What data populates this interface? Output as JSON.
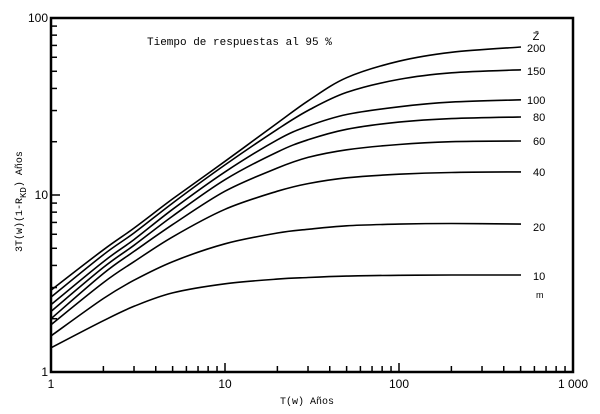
{
  "chart_data": {
    "type": "line",
    "title": "Tiempo de respuestas al 95 %",
    "xlabel": "T(w) Años",
    "ylabel": "3T(w)(1-R_KD) Años",
    "xscale": "log",
    "yscale": "log",
    "xlim": [
      1,
      1000
    ],
    "ylim": [
      1,
      100
    ],
    "x_tick_labels": [
      "1",
      "10",
      "100",
      "1 000"
    ],
    "y_tick_labels": [
      "1",
      "10",
      "100"
    ],
    "legend_title": "Z̄",
    "legend_unit": "m",
    "grid": false,
    "x": [
      1,
      2,
      3,
      5,
      10,
      20,
      30,
      50,
      100,
      200,
      500
    ],
    "series": [
      {
        "name": "200",
        "values": [
          2.9,
          4.9,
          6.5,
          9.5,
          15.5,
          25.5,
          34,
          46,
          57,
          64,
          68.6
        ]
      },
      {
        "name": "150",
        "values": [
          2.65,
          4.6,
          6.1,
          9.0,
          14.8,
          23.5,
          30,
          38,
          45,
          49,
          51
        ]
      },
      {
        "name": "100",
        "values": [
          2.4,
          4.2,
          5.6,
          8.3,
          13.5,
          20.5,
          24.5,
          28.5,
          31.5,
          33.5,
          34.5
        ]
      },
      {
        "name": "80",
        "values": [
          2.2,
          3.9,
          5.2,
          7.6,
          12.2,
          17.5,
          20.5,
          23.5,
          25.8,
          27,
          27.6
        ]
      },
      {
        "name": "60",
        "values": [
          2.0,
          3.6,
          4.8,
          6.8,
          10.5,
          14.2,
          16.3,
          18.0,
          19.3,
          20,
          20.2
        ]
      },
      {
        "name": "40",
        "values": [
          1.85,
          3.2,
          4.2,
          5.8,
          8.3,
          10.5,
          11.6,
          12.5,
          13.1,
          13.4,
          13.5
        ]
      },
      {
        "name": "20",
        "values": [
          1.6,
          2.6,
          3.3,
          4.2,
          5.3,
          6.1,
          6.4,
          6.7,
          6.85,
          6.9,
          6.85
        ]
      },
      {
        "name": "10",
        "values": [
          1.37,
          1.95,
          2.35,
          2.8,
          3.15,
          3.35,
          3.42,
          3.48,
          3.52,
          3.53,
          3.53
        ]
      }
    ]
  }
}
